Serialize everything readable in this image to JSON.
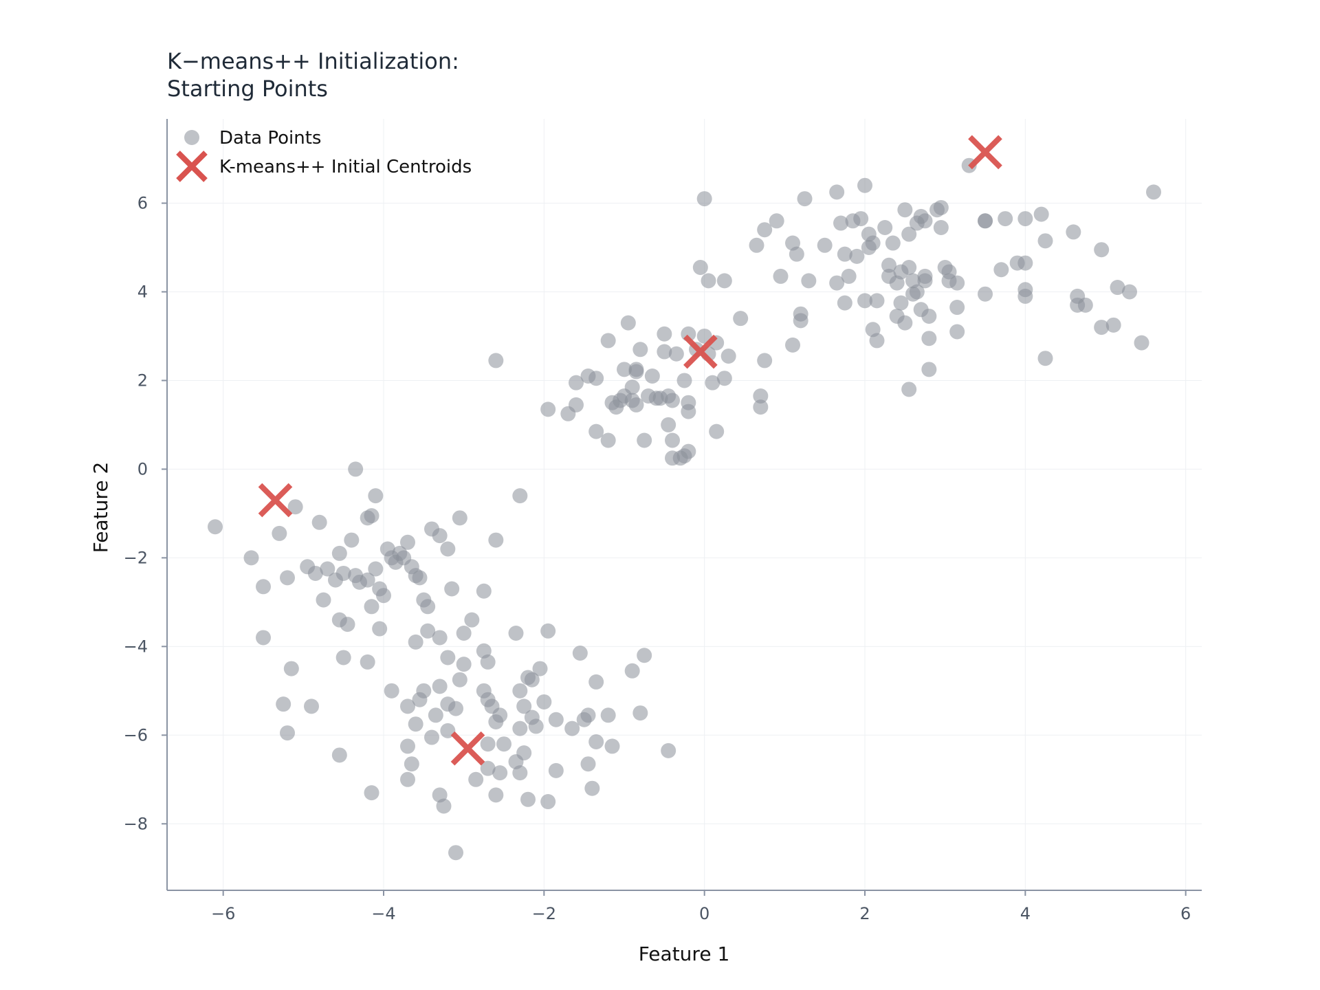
{
  "chart_data": {
    "type": "scatter",
    "title": "K−means++ Initialization:\nStarting Points",
    "xlabel": "Feature 1",
    "ylabel": "Feature 2",
    "xlim": [
      -6.7,
      6.2
    ],
    "ylim": [
      -9.5,
      7.9
    ],
    "xticks": [
      -6,
      -4,
      -2,
      0,
      2,
      4,
      6
    ],
    "yticks": [
      -8,
      -6,
      -4,
      -2,
      0,
      2,
      4,
      6
    ],
    "grid": true,
    "legend_position": "top-left",
    "colors": {
      "data_points": "#8a9099",
      "centroids": "#d9534f",
      "axis": "#8a93a3"
    },
    "series": [
      {
        "name": "Data Points",
        "marker": "circle",
        "points": [
          [
            -6.1,
            -1.3
          ],
          [
            -5.65,
            -2.0
          ],
          [
            -5.5,
            -2.65
          ],
          [
            -5.3,
            -1.45
          ],
          [
            -5.2,
            -2.45
          ],
          [
            -5.1,
            -0.85
          ],
          [
            -4.95,
            -2.2
          ],
          [
            -4.85,
            -2.35
          ],
          [
            -4.8,
            -1.2
          ],
          [
            -4.7,
            -2.25
          ],
          [
            -4.75,
            -2.95
          ],
          [
            -4.6,
            -2.5
          ],
          [
            -4.55,
            -1.9
          ],
          [
            -4.5,
            -2.35
          ],
          [
            -4.4,
            -1.6
          ],
          [
            -4.35,
            -2.4
          ],
          [
            -4.3,
            -2.55
          ],
          [
            -4.2,
            -2.5
          ],
          [
            -4.15,
            -3.1
          ],
          [
            -4.1,
            -2.25
          ],
          [
            -4.05,
            -2.7
          ],
          [
            -4.0,
            -2.85
          ],
          [
            -3.95,
            -1.8
          ],
          [
            -3.9,
            -2.0
          ],
          [
            -3.85,
            -2.1
          ],
          [
            -3.8,
            -1.9
          ],
          [
            -3.75,
            -2.0
          ],
          [
            -3.7,
            -1.65
          ],
          [
            -3.65,
            -2.2
          ],
          [
            -3.6,
            -2.4
          ],
          [
            -3.55,
            -2.45
          ],
          [
            -3.5,
            -2.95
          ],
          [
            -3.45,
            -3.1
          ],
          [
            -3.4,
            -1.35
          ],
          [
            -3.3,
            -1.5
          ],
          [
            -3.2,
            -1.8
          ],
          [
            -3.15,
            -2.7
          ],
          [
            -3.05,
            -1.1
          ],
          [
            -4.1,
            -0.6
          ],
          [
            -4.15,
            -1.05
          ],
          [
            -4.2,
            -1.1
          ],
          [
            -4.35,
            0.0
          ],
          [
            -4.55,
            -3.4
          ],
          [
            -4.45,
            -3.5
          ],
          [
            -4.05,
            -3.6
          ],
          [
            -5.5,
            -3.8
          ],
          [
            -4.5,
            -4.25
          ],
          [
            -4.2,
            -4.35
          ],
          [
            -2.75,
            -2.75
          ],
          [
            -2.6,
            -1.6
          ],
          [
            -2.3,
            -0.6
          ],
          [
            -5.15,
            -4.5
          ],
          [
            -5.25,
            -5.3
          ],
          [
            -5.2,
            -5.95
          ],
          [
            -4.9,
            -5.35
          ],
          [
            -4.55,
            -6.45
          ],
          [
            -4.15,
            -7.3
          ],
          [
            -3.2,
            -4.25
          ],
          [
            -3.0,
            -3.7
          ],
          [
            -2.9,
            -3.4
          ],
          [
            -3.6,
            -3.9
          ],
          [
            -3.45,
            -3.65
          ],
          [
            -3.3,
            -3.8
          ],
          [
            -3.3,
            -4.9
          ],
          [
            -3.5,
            -5.0
          ],
          [
            -3.55,
            -5.2
          ],
          [
            -3.7,
            -5.35
          ],
          [
            -3.9,
            -5.0
          ],
          [
            -3.6,
            -5.75
          ],
          [
            -3.35,
            -5.55
          ],
          [
            -3.2,
            -5.3
          ],
          [
            -3.1,
            -5.4
          ],
          [
            -3.05,
            -4.75
          ],
          [
            -3.0,
            -4.4
          ],
          [
            -2.75,
            -4.1
          ],
          [
            -2.7,
            -4.35
          ],
          [
            -2.75,
            -5.0
          ],
          [
            -2.7,
            -5.2
          ],
          [
            -2.65,
            -5.35
          ],
          [
            -2.55,
            -5.55
          ],
          [
            -2.6,
            -5.7
          ],
          [
            -2.3,
            -5.0
          ],
          [
            -2.2,
            -4.7
          ],
          [
            -2.15,
            -4.75
          ],
          [
            -2.05,
            -4.5
          ],
          [
            -2.35,
            -3.7
          ],
          [
            -1.95,
            -3.65
          ],
          [
            -1.55,
            -4.15
          ],
          [
            -1.35,
            -4.8
          ],
          [
            -0.75,
            -4.2
          ],
          [
            -0.9,
            -4.55
          ],
          [
            -2.25,
            -5.35
          ],
          [
            -2.15,
            -5.6
          ],
          [
            -2.0,
            -5.25
          ],
          [
            -1.85,
            -5.65
          ],
          [
            -1.65,
            -5.85
          ],
          [
            -1.5,
            -5.65
          ],
          [
            -1.45,
            -5.55
          ],
          [
            -1.2,
            -5.55
          ],
          [
            -0.8,
            -5.5
          ],
          [
            -2.1,
            -5.8
          ],
          [
            -2.3,
            -5.85
          ],
          [
            -2.5,
            -6.2
          ],
          [
            -2.7,
            -6.2
          ],
          [
            -3.2,
            -5.9
          ],
          [
            -3.4,
            -6.05
          ],
          [
            -3.7,
            -6.25
          ],
          [
            -3.65,
            -6.65
          ],
          [
            -3.7,
            -7.0
          ],
          [
            -3.3,
            -7.35
          ],
          [
            -3.25,
            -7.6
          ],
          [
            -2.85,
            -7.0
          ],
          [
            -2.7,
            -6.75
          ],
          [
            -2.55,
            -6.85
          ],
          [
            -2.35,
            -6.6
          ],
          [
            -2.3,
            -6.85
          ],
          [
            -2.25,
            -6.4
          ],
          [
            -2.6,
            -7.35
          ],
          [
            -2.2,
            -7.45
          ],
          [
            -1.95,
            -7.5
          ],
          [
            -1.85,
            -6.8
          ],
          [
            -1.45,
            -6.65
          ],
          [
            -1.4,
            -7.2
          ],
          [
            -1.35,
            -6.15
          ],
          [
            -1.15,
            -6.25
          ],
          [
            -0.45,
            -6.35
          ],
          [
            -3.1,
            -8.65
          ],
          [
            -1.95,
            1.35
          ],
          [
            -1.7,
            1.25
          ],
          [
            -1.6,
            1.45
          ],
          [
            -1.6,
            1.95
          ],
          [
            -1.45,
            2.1
          ],
          [
            -1.35,
            2.05
          ],
          [
            -1.35,
            0.85
          ],
          [
            -1.2,
            0.65
          ],
          [
            -1.15,
            1.5
          ],
          [
            -1.1,
            1.4
          ],
          [
            -1.05,
            1.55
          ],
          [
            -1.2,
            2.9
          ],
          [
            -1.0,
            2.25
          ],
          [
            -1.0,
            1.65
          ],
          [
            -0.95,
            3.3
          ],
          [
            -0.9,
            1.55
          ],
          [
            -0.9,
            1.85
          ],
          [
            -0.85,
            2.2
          ],
          [
            -0.85,
            2.25
          ],
          [
            -0.85,
            1.45
          ],
          [
            -0.8,
            2.7
          ],
          [
            -0.75,
            0.65
          ],
          [
            -0.7,
            1.65
          ],
          [
            -0.65,
            2.1
          ],
          [
            -0.6,
            1.6
          ],
          [
            -0.55,
            1.6
          ],
          [
            -0.5,
            2.65
          ],
          [
            -0.5,
            3.05
          ],
          [
            -0.45,
            1.65
          ],
          [
            -0.45,
            1.0
          ],
          [
            -0.4,
            0.65
          ],
          [
            -0.4,
            1.55
          ],
          [
            -0.35,
            2.6
          ],
          [
            -0.4,
            0.25
          ],
          [
            -0.3,
            0.25
          ],
          [
            -0.25,
            0.3
          ],
          [
            -0.25,
            2.0
          ],
          [
            -0.2,
            1.5
          ],
          [
            -0.2,
            1.3
          ],
          [
            -0.2,
            3.05
          ],
          [
            -0.2,
            0.4
          ],
          [
            -0.1,
            2.7
          ],
          [
            0.0,
            3.0
          ],
          [
            0.05,
            2.6
          ],
          [
            0.1,
            1.95
          ],
          [
            0.15,
            2.85
          ],
          [
            0.15,
            0.85
          ],
          [
            0.25,
            2.05
          ],
          [
            0.3,
            2.55
          ],
          [
            0.45,
            3.4
          ],
          [
            0.65,
            5.05
          ],
          [
            0.7,
            1.65
          ],
          [
            0.7,
            1.4
          ],
          [
            0.75,
            2.45
          ],
          [
            0.75,
            5.4
          ],
          [
            0.9,
            5.6
          ],
          [
            0.95,
            4.35
          ],
          [
            1.1,
            5.1
          ],
          [
            1.1,
            2.8
          ],
          [
            1.15,
            4.85
          ],
          [
            1.2,
            3.5
          ],
          [
            1.2,
            3.35
          ],
          [
            1.25,
            6.1
          ],
          [
            1.3,
            4.25
          ],
          [
            -0.05,
            4.55
          ],
          [
            0.0,
            6.1
          ],
          [
            0.05,
            4.25
          ],
          [
            0.25,
            4.25
          ],
          [
            -2.6,
            2.45
          ],
          [
            1.5,
            5.05
          ],
          [
            1.65,
            4.2
          ],
          [
            1.65,
            6.25
          ],
          [
            1.7,
            5.55
          ],
          [
            1.75,
            4.85
          ],
          [
            1.75,
            3.75
          ],
          [
            1.8,
            4.35
          ],
          [
            1.85,
            5.6
          ],
          [
            1.9,
            4.8
          ],
          [
            1.95,
            5.65
          ],
          [
            2.0,
            6.4
          ],
          [
            2.0,
            3.8
          ],
          [
            2.05,
            5.0
          ],
          [
            2.05,
            5.3
          ],
          [
            2.1,
            5.1
          ],
          [
            2.15,
            3.8
          ],
          [
            2.1,
            3.15
          ],
          [
            2.15,
            2.9
          ],
          [
            2.25,
            5.45
          ],
          [
            2.3,
            4.35
          ],
          [
            2.3,
            4.6
          ],
          [
            2.35,
            5.1
          ],
          [
            2.4,
            4.2
          ],
          [
            2.45,
            4.45
          ],
          [
            2.4,
            3.45
          ],
          [
            2.45,
            3.75
          ],
          [
            2.5,
            3.3
          ],
          [
            2.5,
            5.85
          ],
          [
            2.55,
            5.3
          ],
          [
            2.55,
            4.55
          ],
          [
            2.6,
            4.25
          ],
          [
            2.6,
            3.95
          ],
          [
            2.65,
            4.0
          ],
          [
            2.65,
            5.55
          ],
          [
            2.7,
            5.7
          ],
          [
            2.75,
            5.6
          ],
          [
            2.75,
            4.35
          ],
          [
            2.75,
            4.25
          ],
          [
            2.7,
            3.6
          ],
          [
            2.8,
            3.45
          ],
          [
            2.8,
            2.95
          ],
          [
            2.8,
            2.25
          ],
          [
            2.55,
            1.8
          ],
          [
            2.9,
            5.85
          ],
          [
            2.95,
            5.9
          ],
          [
            2.95,
            5.45
          ],
          [
            3.0,
            4.55
          ],
          [
            3.05,
            4.45
          ],
          [
            3.05,
            4.25
          ],
          [
            3.15,
            4.2
          ],
          [
            3.15,
            3.65
          ],
          [
            3.15,
            3.1
          ],
          [
            3.3,
            6.85
          ],
          [
            3.5,
            5.6
          ],
          [
            3.5,
            5.6
          ],
          [
            3.5,
            3.95
          ],
          [
            3.7,
            4.5
          ],
          [
            3.75,
            5.65
          ],
          [
            3.9,
            4.65
          ],
          [
            4.0,
            5.65
          ],
          [
            4.0,
            4.65
          ],
          [
            4.0,
            4.05
          ],
          [
            4.0,
            3.9
          ],
          [
            4.2,
            5.75
          ],
          [
            4.25,
            5.15
          ],
          [
            4.25,
            2.5
          ],
          [
            4.6,
            5.35
          ],
          [
            4.65,
            3.9
          ],
          [
            4.65,
            3.7
          ],
          [
            4.75,
            3.7
          ],
          [
            4.95,
            4.95
          ],
          [
            4.95,
            3.2
          ],
          [
            5.1,
            3.25
          ],
          [
            5.15,
            4.1
          ],
          [
            5.3,
            4.0
          ],
          [
            5.45,
            2.85
          ],
          [
            5.6,
            6.25
          ]
        ]
      },
      {
        "name": "K-means++ Initial Centroids",
        "marker": "x",
        "points": [
          [
            -5.35,
            -0.7
          ],
          [
            -0.05,
            2.65
          ],
          [
            3.5,
            7.15
          ],
          [
            -2.95,
            -6.3
          ]
        ]
      }
    ]
  }
}
